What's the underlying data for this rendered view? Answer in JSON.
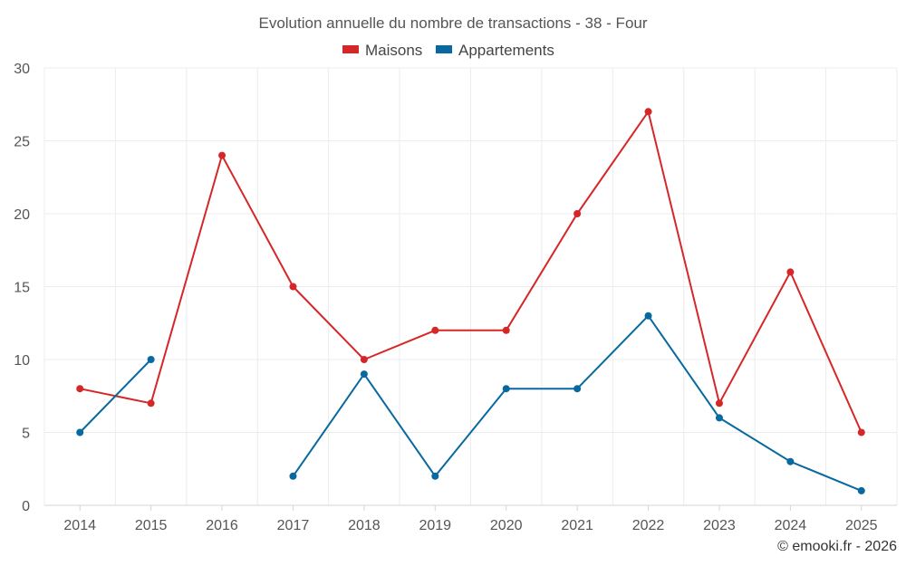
{
  "chart_data": {
    "type": "line",
    "title": "Evolution annuelle du nombre de transactions - 38 - Four",
    "categories": [
      "2014",
      "2015",
      "2016",
      "2017",
      "2018",
      "2019",
      "2020",
      "2021",
      "2022",
      "2023",
      "2024",
      "2025"
    ],
    "ylim": [
      0,
      30
    ],
    "yticks": [
      0,
      5,
      10,
      15,
      20,
      25,
      30
    ],
    "grid": true,
    "legend_position": "top-center",
    "series": [
      {
        "name": "Maisons",
        "color": "#d62728",
        "values": [
          8,
          7,
          24,
          15,
          10,
          12,
          12,
          20,
          27,
          7,
          16,
          5
        ]
      },
      {
        "name": "Appartements",
        "color": "#0868a0",
        "values": [
          5,
          10,
          null,
          2,
          9,
          2,
          8,
          8,
          13,
          6,
          3,
          1
        ]
      }
    ]
  },
  "credit": "© emooki.fr - 2026"
}
